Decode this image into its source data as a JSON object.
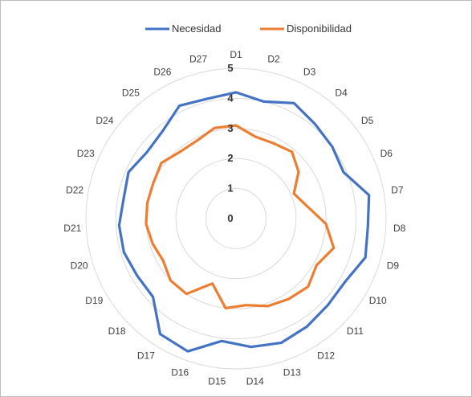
{
  "chart_data": {
    "type": "radar",
    "categories": [
      "D1",
      "D2",
      "D3",
      "D4",
      "D5",
      "D6",
      "D7",
      "D8",
      "D9",
      "D10",
      "D11",
      "D12",
      "D13",
      "D14",
      "D15",
      "D16",
      "D17",
      "D18",
      "D19",
      "D20",
      "D21",
      "D22",
      "D23",
      "D24",
      "D25",
      "D26",
      "D27"
    ],
    "series": [
      {
        "name": "Necesidad",
        "color": "#4472C4",
        "values": [
          4.2,
          4.0,
          4.3,
          4.1,
          4.0,
          3.9,
          4.5,
          4.4,
          4.5,
          4.2,
          4.2,
          4.3,
          4.4,
          4.3,
          4.1,
          4.7,
          4.6,
          3.8,
          3.8,
          3.9,
          3.9,
          3.8,
          3.9,
          3.7,
          3.8,
          4.2,
          4.1
        ]
      },
      {
        "name": "Disponibilidad",
        "color": "#ED7D31",
        "values": [
          3.1,
          2.8,
          2.8,
          2.9,
          2.6,
          2.1,
          2.4,
          3.0,
          3.4,
          3.1,
          3.3,
          3.2,
          3.1,
          2.9,
          3.0,
          2.3,
          3.0,
          3.0,
          2.8,
          2.9,
          3.0,
          3.0,
          3.0,
          3.1,
          2.9,
          2.9,
          3.1
        ]
      }
    ],
    "rmin": 0,
    "rmax": 5,
    "ticks": [
      "0",
      "1",
      "2",
      "3",
      "4",
      "5"
    ],
    "legend_position": "top",
    "grid": true
  }
}
